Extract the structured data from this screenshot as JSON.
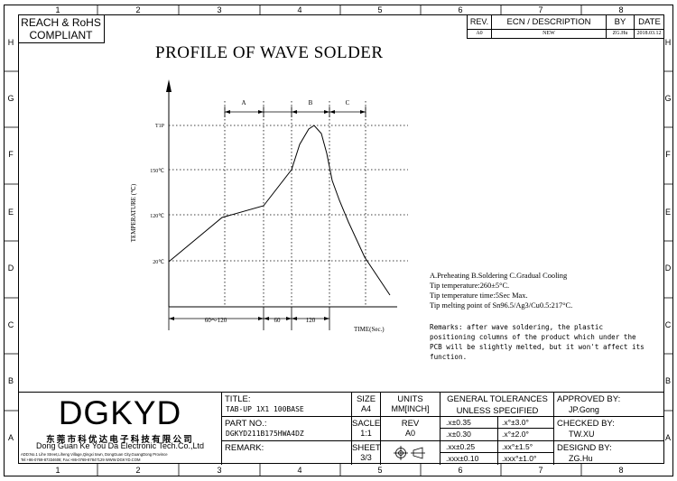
{
  "zones": {
    "columns": [
      "1",
      "2",
      "3",
      "4",
      "5",
      "6",
      "7",
      "8"
    ],
    "rows": [
      "H",
      "G",
      "F",
      "E",
      "D",
      "C",
      "B",
      "A"
    ]
  },
  "compliance": {
    "line1": "REACH & RoHS",
    "line2": "COMPLIANT"
  },
  "revision_table": {
    "headers": [
      "REV.",
      "ECN / DESCRIPTION",
      "BY",
      "DATE"
    ],
    "rows": [
      [
        "A0",
        "NEW",
        "ZG.Hu",
        "2018.03.12"
      ]
    ]
  },
  "drawing_title": "PROFILE OF WAVE SOLDER",
  "chart_data": {
    "type": "line",
    "title": "PROFILE OF WAVE SOLDER",
    "ylabel": "TEMPERATURE (℃)",
    "xlabel": "TIME(Sec.)",
    "y_ticks": [
      "T1P",
      "150℃",
      "120℃",
      "20℃"
    ],
    "phases": [
      "A",
      "B",
      "C"
    ],
    "durations": [
      "60～120",
      "60",
      "120"
    ]
  },
  "notes": [
    "A.Preheating  B.Soldering  C.Gradual Cooling",
    "Tip temperature:260±5°C.",
    "Tip temperature time:5Sec Max.",
    "Tip melting point of Sn96.5/Ag3/Cu0.5:217°C."
  ],
  "remarks": [
    "Remarks: after wave soldering, the plastic",
    "positioning columns of the product  which under the",
    "PCB will be slightly melted, but it won't affect its",
    "function."
  ],
  "company": {
    "logo": "DGKYD",
    "name_cn": "东莞市科优达电子科技有限公司",
    "name_en": "Dong Guan Ke You Da Electronic Tech.Co.,Ltd",
    "address": "ADD:No.1 Lihe Street,Liheng Village,Qingxi town, DongGuan City,GuangDong Province",
    "contact": "Tel:+86-0769-87334608; Fax:+86-0769-87847129  WWW.DGKYD.COM"
  },
  "title_block": {
    "title_label": "TITLE:",
    "title_value": "TAB-UP 1X1 100BASE",
    "size_label": "SIZE",
    "size_value": "A4",
    "units_label": "UNITS",
    "units_value": "MM[INCH]",
    "part_label": "PART NO.:",
    "part_value": "DGKYD211B175HWA4DZ",
    "scale_label": "SACLE",
    "scale_value": "1:1",
    "rev_label": "REV",
    "rev_value": "A0",
    "remark_label": "REMARK:",
    "sheet_label": "SHEET",
    "sheet_value": "3/3",
    "tol_title1": "GENERAL TOLERANCES",
    "tol_title2": "UNLESS SPECIFIED",
    "tol": [
      [
        ".x±0.35",
        ".x°±3.0°"
      ],
      [
        ".x±0.30",
        ".x°±2.0°"
      ],
      [
        ".xx±0.25",
        ".xx°±1.5°"
      ],
      [
        ".xxx±0.10",
        ".xxx°±1.0°"
      ]
    ],
    "approved_label": "APPROVED BY:",
    "approved_value": "JP.Gong",
    "checked_label": "CHECKED BY:",
    "checked_value": "TW.XU",
    "designed_label": "DESIGND BY:",
    "designed_value": "ZG.Hu"
  }
}
